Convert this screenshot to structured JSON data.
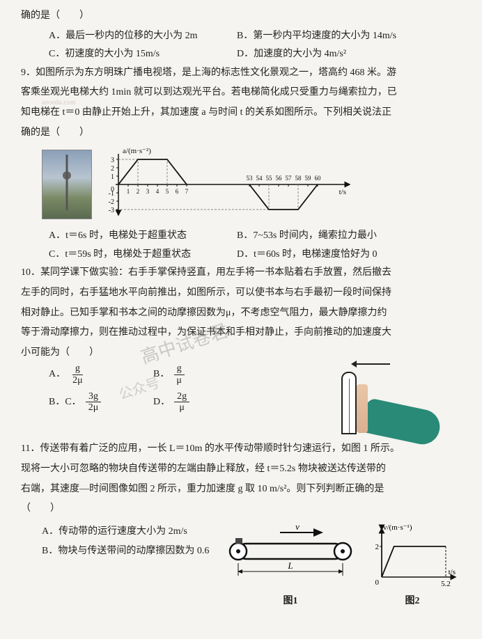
{
  "q8_tail": "确的是（　　）",
  "q8": {
    "A": "A．最后一秒内的位移的大小为 2m",
    "B": "B．第一秒内平均速度的大小为 14m/s",
    "C": "C．初速度的大小为 15m/s",
    "D": "D．加速度的大小为 4m/s²"
  },
  "q9": {
    "stem_l1": "9．如图所示为东方明珠广播电视塔，是上海的标志性文化景观之一，塔高约 468 米。游",
    "stem_l2": "客乘坐观光电梯大约 1min 就可以到达观光平台。若电梯简化成只受重力与绳索拉力，已",
    "stem_l3": "知电梯在 t＝0 由静止开始上升，其加速度 a 与时间 t 的关系如图所示。下列相关说法正",
    "stem_l4": "确的是（　　）",
    "A": "A．t＝6s 时，电梯处于超重状态",
    "B": "B．7~53s 时间内，绳索拉力最小",
    "C": "C．t＝59s 时，电梯处于超重状态",
    "D": "D．t＝60s 时，电梯速度恰好为 0",
    "graph": {
      "y_label": "a/(m·s⁻²)",
      "x_label": "t/s",
      "y_max": 3,
      "y_min": -3,
      "y_ticks": [
        -3,
        -2,
        -1,
        0,
        1,
        2,
        3
      ],
      "x_ticks_left": [
        0,
        1,
        2,
        3,
        4,
        5,
        6,
        7
      ],
      "x_ticks_right": [
        53,
        54,
        55,
        56,
        57,
        58,
        59,
        60
      ],
      "segments": [
        {
          "from": [
            0,
            0
          ],
          "to": [
            2,
            3
          ]
        },
        {
          "from": [
            2,
            3
          ],
          "to": [
            5,
            3
          ]
        },
        {
          "from": [
            5,
            3
          ],
          "to": [
            7,
            0
          ]
        },
        {
          "from": [
            53,
            0
          ],
          "to": [
            55,
            -3
          ]
        },
        {
          "from": [
            55,
            -3
          ],
          "to": [
            58,
            -3
          ]
        },
        {
          "from": [
            58,
            -3
          ],
          "to": [
            60,
            0
          ]
        }
      ],
      "line_color": "#111",
      "grid_color": "#ccc"
    }
  },
  "q10": {
    "stem_l1": "10．某同学课下做实验：右手手掌保持竖直，用左手将一书本贴着右手放置，然后撤去",
    "stem_l2": "左手的同时，右手猛地水平向前推出，如图所示，可以使书本与右手最初一段时间保持",
    "stem_l3": "相对静止。已知手掌和书本之间的动摩擦因数为μ，不考虑空气阻力，最大静摩擦力约",
    "stem_l4": "等于滑动摩擦力，则在推动过程中，为保证书本和手相对静止，手向前推动的加速度大",
    "stem_l5": "小可能为（　　）",
    "opts": {
      "A_label": "A．",
      "A_num": "g",
      "A_den": "2μ",
      "B_label": "B．",
      "B_num": "g",
      "B_den": "μ",
      "C_label": "B．C．",
      "C_num": "3g",
      "C_den": "2μ",
      "D_label": "D．",
      "D_num": "2g",
      "D_den": "μ"
    }
  },
  "q11": {
    "stem_l1": "11．传送带有着广泛的应用，一长 L＝10m 的水平传动带顺时针匀速运行，如图 1 所示。",
    "stem_l2": "现将一大小可忽略的物块自传送带的左端由静止释放，经 t＝5.2s 物块被送达传送带的",
    "stem_l3": "右端，其速度—时间图像如图 2 所示，重力加速度 g 取 10 m/s²。则下列判断正确的是",
    "stem_l4": "（　　）",
    "A": "A．传动带的运行速度大小为 2m/s",
    "B": "B．物块与传送带间的动摩擦因数为 0.6",
    "fig1_label": "图1",
    "fig2_label": "图2",
    "belt": {
      "v_label": "v",
      "L_label": "L"
    },
    "vt": {
      "y_label": "v/(m·s⁻¹)",
      "x_label": "t/s",
      "y_max_tick": "2",
      "x_max_tick": "5.2",
      "break_t": 1,
      "v_max": 2,
      "t_end": 5.2
    }
  },
  "watermark_main": "高中试卷君",
  "watermark_sub": "公众号",
  "faint": "aooedu.com"
}
